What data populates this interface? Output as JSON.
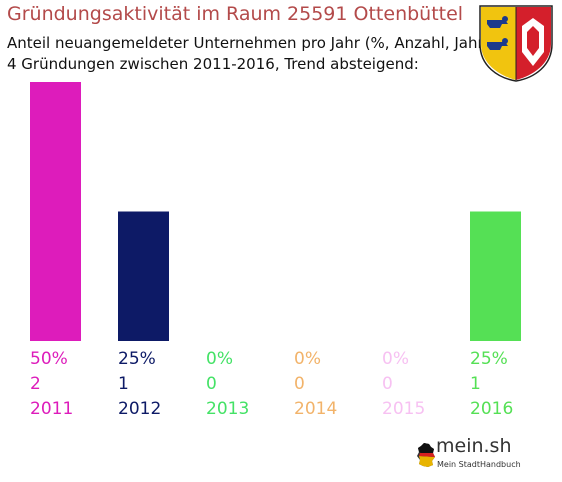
{
  "chart_data": {
    "type": "bar",
    "title": "Gründungsaktivität im Raum 25591 Ottenbüttel",
    "subtitle": [
      "Anteil neuangemeldeter Unternehmen pro Jahr (%, Anzahl, Jahr)",
      "4 Gründungen zwischen 2011-2016, Trend absteigend:"
    ],
    "categories": [
      "2011",
      "2012",
      "2013",
      "2014",
      "2015",
      "2016"
    ],
    "values": [
      50,
      25,
      0,
      0,
      0,
      25
    ],
    "percent_labels": [
      "50%",
      "25%",
      "0%",
      "0%",
      "0%",
      "25%"
    ],
    "counts": [
      "2",
      "1",
      "0",
      "0",
      "0",
      "1"
    ],
    "colors": [
      "#dd1cbb",
      "#0d1a66",
      "#44e266",
      "#f2b36a",
      "#f7c1f2",
      "#55e055"
    ],
    "ylim": [
      0,
      50
    ],
    "grid": false,
    "legend": "none"
  },
  "brand": {
    "name": "mein.sh",
    "tagline": "Mein StadtHandbuch"
  },
  "coat_icon": "schleswig-holstein-coat-of-arms-icon"
}
